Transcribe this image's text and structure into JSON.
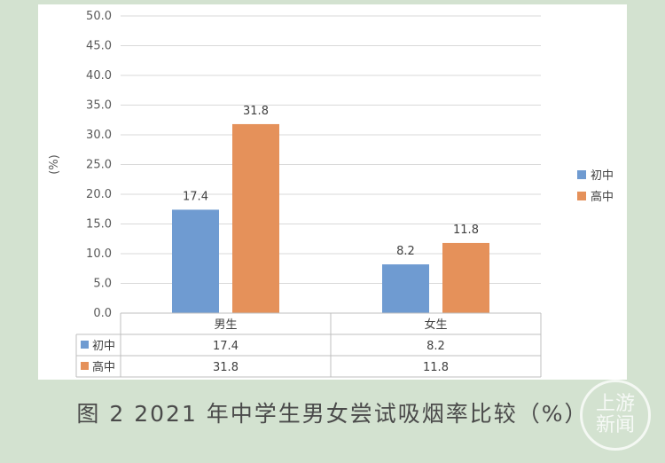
{
  "chart_data": {
    "type": "bar",
    "categories": [
      "男生",
      "女生"
    ],
    "series": [
      {
        "name": "初中",
        "values": [
          17.4,
          8.2
        ],
        "color": "#6f9bd1"
      },
      {
        "name": "高中",
        "values": [
          31.8,
          11.8
        ],
        "color": "#e5915a"
      }
    ],
    "data_labels": [
      [
        "17.4",
        "8.2"
      ],
      [
        "31.8",
        "11.8"
      ]
    ],
    "ylabel": "(%)",
    "ylim": [
      0,
      50
    ],
    "yticks": [
      "0.0",
      "5.0",
      "10.0",
      "15.0",
      "20.0",
      "25.0",
      "30.0",
      "35.0",
      "40.0",
      "45.0",
      "50.0"
    ],
    "grid": true,
    "legend_position": "right",
    "data_table": {
      "rows": [
        {
          "name": "初中",
          "cells": [
            "17.4",
            "8.2"
          ]
        },
        {
          "name": "高中",
          "cells": [
            "31.8",
            "11.8"
          ]
        }
      ]
    }
  },
  "caption": "图 2 2021 年中学生男女尝试吸烟率比较（%）",
  "watermark": {
    "line1": "上游",
    "line2": "新闻"
  }
}
